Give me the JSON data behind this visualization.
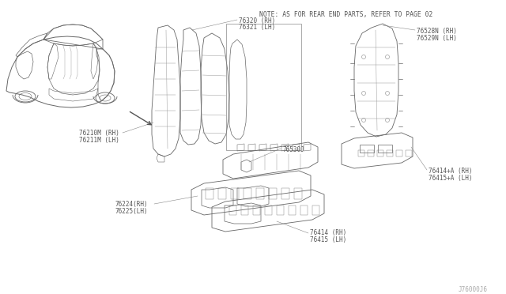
{
  "bg_color": "#ffffff",
  "title_note": "NOTE: AS FOR REAR END PARTS, REFER TO PAGE 02",
  "page_ref": "J76000J6",
  "labels": {
    "76320_rh": "76320 (RH)",
    "76321_lh": "76321 (LH)",
    "76210m_rh": "76210M (RH)",
    "76211m_lh": "76211M (LH)",
    "76224_rh": "76224(RH)",
    "76225_lh": "76225(LH)",
    "76530j": "76530J",
    "76414_rh": "76414 (RH)",
    "76415_lh": "76415 (LH)",
    "76414a_rh": "76414+A (RH)",
    "76415a_lh": "76415+A (LH)",
    "76528n_rh": "76528N (RH)",
    "76529n_lh": "76529N (LH)"
  },
  "text_color": "#555555",
  "line_color": "#666666",
  "thin_color": "#888888",
  "font_size": 5.5,
  "note_font_size": 5.8
}
